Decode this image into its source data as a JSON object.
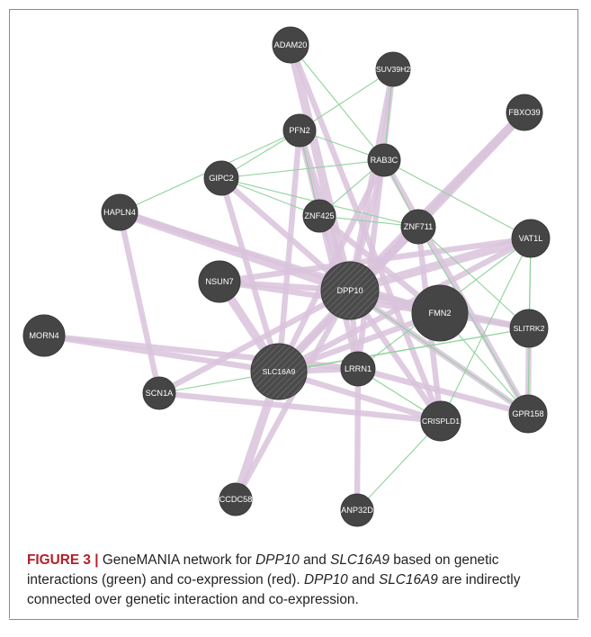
{
  "figure": {
    "label": "FIGURE 3 |",
    "caption": {
      "part1": " GeneMANIA network for ",
      "gene1": "DPP10",
      "and1": " and ",
      "gene2": "SLC16A9",
      "part2": " based on genetic interactions (green) and co-expression (red). ",
      "gene3": "DPP10",
      "and2": " and ",
      "gene4": "SLC16A9",
      "part3": " are indirectly connected over genetic interaction and co-expression."
    }
  },
  "colors": {
    "node": "#454545",
    "coexpression_edge": "#d9c3dc",
    "genetic_edge": "#8fd39a",
    "caption_label": "#b3202a"
  },
  "network": {
    "nodes": [
      {
        "id": "ADAM20",
        "label": "ADAM20",
        "query": false
      },
      {
        "id": "SUV39H2",
        "label": "SUV39H2",
        "query": false
      },
      {
        "id": "FBXO39",
        "label": "FBXO39",
        "query": false
      },
      {
        "id": "PFN2",
        "label": "PFN2",
        "query": false
      },
      {
        "id": "RAB3C",
        "label": "RAB3C",
        "query": false
      },
      {
        "id": "GIPC2",
        "label": "GIPC2",
        "query": false
      },
      {
        "id": "HAPLN4",
        "label": "HAPLN4",
        "query": false
      },
      {
        "id": "ZNF425",
        "label": "ZNF425",
        "query": false
      },
      {
        "id": "ZNF711",
        "label": "ZNF711",
        "query": false
      },
      {
        "id": "VAT1L",
        "label": "VAT1L",
        "query": false
      },
      {
        "id": "NSUN7",
        "label": "NSUN7",
        "query": false
      },
      {
        "id": "DPP10",
        "label": "DPP10",
        "query": true
      },
      {
        "id": "FMN2",
        "label": "FMN2",
        "query": false
      },
      {
        "id": "SLITRK2",
        "label": "SLITRK2",
        "query": false
      },
      {
        "id": "MORN4",
        "label": "MORN4",
        "query": false
      },
      {
        "id": "SLC16A9",
        "label": "SLC16A9",
        "query": true
      },
      {
        "id": "LRRN1",
        "label": "LRRN1",
        "query": false
      },
      {
        "id": "SCN1A",
        "label": "SCN1A",
        "query": false
      },
      {
        "id": "CRISPLD1",
        "label": "CRISPLD1",
        "query": false
      },
      {
        "id": "GPR158",
        "label": "GPR158",
        "query": false
      },
      {
        "id": "CCDC58",
        "label": "CCDC58",
        "query": false
      },
      {
        "id": "ANP32D",
        "label": "ANP32D",
        "query": false
      }
    ],
    "coexpression_edges": [
      [
        "ADAM20",
        "DPP10",
        3
      ],
      [
        "ADAM20",
        "CRISPLD1",
        2
      ],
      [
        "SUV39H2",
        "DPP10",
        2
      ],
      [
        "SUV39H2",
        "LRRN1",
        2
      ],
      [
        "FBXO39",
        "DPP10",
        3
      ],
      [
        "FBXO39",
        "SLC16A9",
        3
      ],
      [
        "PFN2",
        "DPP10",
        2
      ],
      [
        "PFN2",
        "SLC16A9",
        2
      ],
      [
        "PFN2",
        "LRRN1",
        2
      ],
      [
        "RAB3C",
        "DPP10",
        2
      ],
      [
        "RAB3C",
        "SLC16A9",
        2
      ],
      [
        "RAB3C",
        "GPR158",
        2
      ],
      [
        "GIPC2",
        "DPP10",
        2
      ],
      [
        "GIPC2",
        "SLC16A9",
        2
      ],
      [
        "HAPLN4",
        "DPP10",
        3
      ],
      [
        "HAPLN4",
        "SCN1A",
        2
      ],
      [
        "HAPLN4",
        "FMN2",
        2
      ],
      [
        "ZNF425",
        "DPP10",
        2
      ],
      [
        "ZNF425",
        "FMN2",
        2
      ],
      [
        "ZNF711",
        "DPP10",
        2
      ],
      [
        "ZNF711",
        "SLC16A9",
        2
      ],
      [
        "ZNF711",
        "CRISPLD1",
        2
      ],
      [
        "VAT1L",
        "DPP10",
        3
      ],
      [
        "VAT1L",
        "NSUN7",
        2
      ],
      [
        "VAT1L",
        "SLC16A9",
        2
      ],
      [
        "NSUN7",
        "DPP10",
        2
      ],
      [
        "NSUN7",
        "SLC16A9",
        3
      ],
      [
        "NSUN7",
        "FMN2",
        2
      ],
      [
        "DPP10",
        "FMN2",
        3
      ],
      [
        "DPP10",
        "SLITRK2",
        2
      ],
      [
        "DPP10",
        "LRRN1",
        2
      ],
      [
        "DPP10",
        "CRISPLD1",
        2
      ],
      [
        "DPP10",
        "GPR158",
        2
      ],
      [
        "DPP10",
        "SCN1A",
        2
      ],
      [
        "DPP10",
        "CCDC58",
        2
      ],
      [
        "FMN2",
        "SLC16A9",
        2
      ],
      [
        "FMN2",
        "SLITRK2",
        2
      ],
      [
        "MORN4",
        "SLC16A9",
        2
      ],
      [
        "MORN4",
        "LRRN1",
        2
      ],
      [
        "SLC16A9",
        "CCDC58",
        3
      ],
      [
        "SLC16A9",
        "LRRN1",
        2
      ],
      [
        "SLC16A9",
        "CRISPLD1",
        2
      ],
      [
        "LRRN1",
        "ANP32D",
        2
      ],
      [
        "LRRN1",
        "GPR158",
        2
      ],
      [
        "SCN1A",
        "CRISPLD1",
        2
      ],
      [
        "GPR158",
        "SLITRK2",
        2
      ]
    ],
    "genetic_edges": [
      [
        "ADAM20",
        "RAB3C"
      ],
      [
        "SUV39H2",
        "PFN2"
      ],
      [
        "SUV39H2",
        "RAB3C"
      ],
      [
        "PFN2",
        "RAB3C"
      ],
      [
        "PFN2",
        "GIPC2"
      ],
      [
        "PFN2",
        "ZNF425"
      ],
      [
        "PFN2",
        "HAPLN4"
      ],
      [
        "RAB3C",
        "GIPC2"
      ],
      [
        "RAB3C",
        "ZNF425"
      ],
      [
        "RAB3C",
        "ZNF711"
      ],
      [
        "RAB3C",
        "VAT1L"
      ],
      [
        "GIPC2",
        "ZNF425"
      ],
      [
        "GIPC2",
        "ZNF711"
      ],
      [
        "ZNF425",
        "ZNF711"
      ],
      [
        "ZNF711",
        "GPR158"
      ],
      [
        "ZNF711",
        "SLITRK2"
      ],
      [
        "VAT1L",
        "SLITRK2"
      ],
      [
        "VAT1L",
        "GPR158"
      ],
      [
        "VAT1L",
        "CRISPLD1"
      ],
      [
        "VAT1L",
        "LRRN1"
      ],
      [
        "FMN2",
        "GPR158"
      ],
      [
        "SLC16A9",
        "SLITRK2"
      ],
      [
        "LRRN1",
        "CRISPLD1"
      ],
      [
        "SCN1A",
        "SLITRK2"
      ],
      [
        "CRISPLD1",
        "ANP32D"
      ],
      [
        "DPP10",
        "GPR158"
      ]
    ]
  }
}
